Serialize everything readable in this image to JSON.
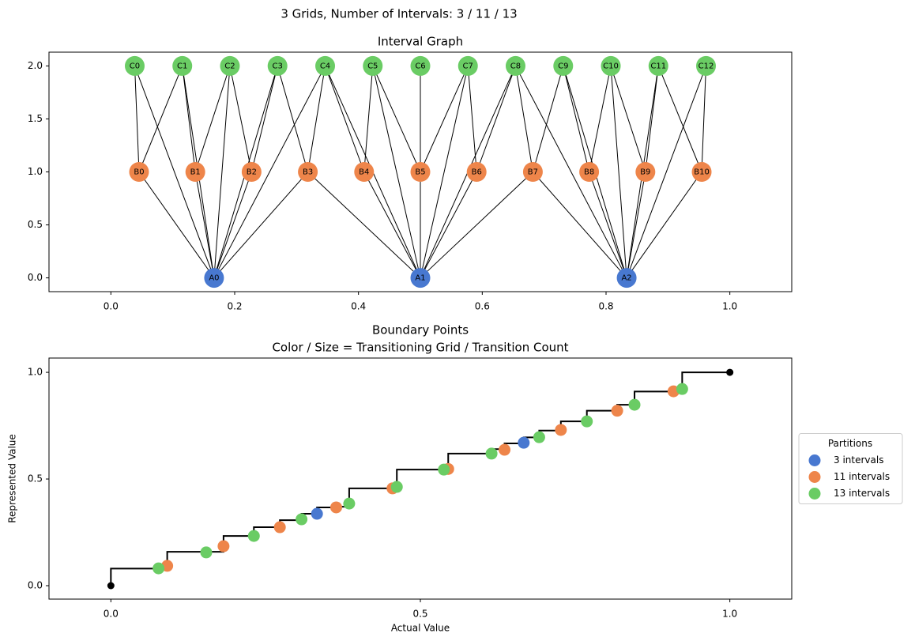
{
  "title": "3 Grids, Number of Intervals: 3 / 11 / 13",
  "chart_data": [
    {
      "type": "network",
      "title": "Interval Graph",
      "xlim": [
        -0.1,
        1.1
      ],
      "ylim": [
        -0.13,
        2.13
      ],
      "xticks": [
        {
          "value": 0,
          "label": "0.0"
        },
        {
          "value": 0.2,
          "label": "0.2"
        },
        {
          "value": 0.4,
          "label": "0.4"
        },
        {
          "value": 0.6,
          "label": "0.6"
        },
        {
          "value": 0.8,
          "label": "0.8"
        },
        {
          "value": 1,
          "label": "1.0"
        }
      ],
      "yticks": [
        {
          "value": 0,
          "label": "0.0"
        },
        0.5,
        {
          "value": 1,
          "label": "1.0"
        },
        1.5,
        {
          "value": 2,
          "label": "2.0"
        }
      ],
      "node_colors": [
        "#4878d0",
        "#ee854a",
        "#6acc64"
      ],
      "nodes": [
        [
          {
            "label": "A0",
            "x": 0.1667,
            "y": 0
          },
          {
            "label": "A1",
            "x": 0.5,
            "y": 0
          },
          {
            "label": "A2",
            "x": 0.8333,
            "y": 0
          }
        ],
        [
          {
            "label": "B0",
            "x": 0.0455,
            "y": 1
          },
          {
            "label": "B1",
            "x": 0.1364,
            "y": 1
          },
          {
            "label": "B2",
            "x": 0.2273,
            "y": 1
          },
          {
            "label": "B3",
            "x": 0.3182,
            "y": 1
          },
          {
            "label": "B4",
            "x": 0.4091,
            "y": 1
          },
          {
            "label": "B5",
            "x": 0.5,
            "y": 1
          },
          {
            "label": "B6",
            "x": 0.5909,
            "y": 1
          },
          {
            "label": "B7",
            "x": 0.6818,
            "y": 1
          },
          {
            "label": "B8",
            "x": 0.7727,
            "y": 1
          },
          {
            "label": "B9",
            "x": 0.8636,
            "y": 1
          },
          {
            "label": "B10",
            "x": 0.9545,
            "y": 1
          }
        ],
        [
          {
            "label": "C0",
            "x": 0.0385,
            "y": 2
          },
          {
            "label": "C1",
            "x": 0.1154,
            "y": 2
          },
          {
            "label": "C2",
            "x": 0.1923,
            "y": 2
          },
          {
            "label": "C3",
            "x": 0.2692,
            "y": 2
          },
          {
            "label": "C4",
            "x": 0.3462,
            "y": 2
          },
          {
            "label": "C5",
            "x": 0.4231,
            "y": 2
          },
          {
            "label": "C6",
            "x": 0.5,
            "y": 2
          },
          {
            "label": "C7",
            "x": 0.5769,
            "y": 2
          },
          {
            "label": "C8",
            "x": 0.6538,
            "y": 2
          },
          {
            "label": "C9",
            "x": 0.7308,
            "y": 2
          },
          {
            "label": "C10",
            "x": 0.8077,
            "y": 2
          },
          {
            "label": "C11",
            "x": 0.8846,
            "y": 2
          },
          {
            "label": "C12",
            "x": 0.9615,
            "y": 2
          }
        ]
      ],
      "edges": [
        [
          "A0",
          "B0"
        ],
        [
          "A0",
          "B1"
        ],
        [
          "A0",
          "B2"
        ],
        [
          "A0",
          "B3"
        ],
        [
          "A1",
          "B3"
        ],
        [
          "A1",
          "B4"
        ],
        [
          "A1",
          "B5"
        ],
        [
          "A1",
          "B6"
        ],
        [
          "A1",
          "B7"
        ],
        [
          "A2",
          "B7"
        ],
        [
          "A2",
          "B8"
        ],
        [
          "A2",
          "B9"
        ],
        [
          "A2",
          "B10"
        ],
        [
          "A0",
          "C0"
        ],
        [
          "A0",
          "C1"
        ],
        [
          "A0",
          "C2"
        ],
        [
          "A0",
          "C3"
        ],
        [
          "A0",
          "C4"
        ],
        [
          "A1",
          "C4"
        ],
        [
          "A1",
          "C5"
        ],
        [
          "A1",
          "C6"
        ],
        [
          "A1",
          "C7"
        ],
        [
          "A1",
          "C8"
        ],
        [
          "A2",
          "C8"
        ],
        [
          "A2",
          "C9"
        ],
        [
          "A2",
          "C10"
        ],
        [
          "A2",
          "C11"
        ],
        [
          "A2",
          "C12"
        ],
        [
          "B0",
          "C0"
        ],
        [
          "B0",
          "C1"
        ],
        [
          "B1",
          "C1"
        ],
        [
          "B1",
          "C2"
        ],
        [
          "B2",
          "C2"
        ],
        [
          "B2",
          "C3"
        ],
        [
          "B3",
          "C3"
        ],
        [
          "B3",
          "C4"
        ],
        [
          "B4",
          "C4"
        ],
        [
          "B4",
          "C5"
        ],
        [
          "B5",
          "C5"
        ],
        [
          "B5",
          "C6"
        ],
        [
          "B5",
          "C7"
        ],
        [
          "B6",
          "C7"
        ],
        [
          "B6",
          "C8"
        ],
        [
          "B7",
          "C8"
        ],
        [
          "B7",
          "C9"
        ],
        [
          "B8",
          "C9"
        ],
        [
          "B8",
          "C10"
        ],
        [
          "B9",
          "C10"
        ],
        [
          "B9",
          "C11"
        ],
        [
          "B10",
          "C11"
        ],
        [
          "B10",
          "C12"
        ]
      ]
    },
    {
      "type": "scatter",
      "title": [
        "Boundary Points",
        "Color / Size = Transitioning Grid / Transition Count"
      ],
      "xlabel": "Actual Value",
      "ylabel": "Represented Value",
      "xlim": [
        -0.1,
        1.1
      ],
      "ylim": [
        -0.063,
        1.067
      ],
      "xticks": [
        {
          "value": 0,
          "label": "0.0"
        },
        0.5,
        {
          "value": 1,
          "label": "1.0"
        }
      ],
      "yticks": [
        {
          "value": 0,
          "label": "0.0"
        },
        0.5,
        {
          "value": 1,
          "label": "1.0"
        }
      ],
      "legend": {
        "title": "Partitions",
        "loc": "outside right"
      },
      "step_line": {
        "color": "#000000",
        "x": [
          0,
          0.091,
          0.182,
          0.231,
          0.273,
          0.308,
          0.333,
          0.364,
          0.385,
          0.462,
          0.545,
          0.615,
          0.636,
          0.667,
          0.692,
          0.727,
          0.769,
          0.818,
          0.846,
          0.923,
          1
        ],
        "values": [
          0,
          0.08,
          0.159,
          0.233,
          0.274,
          0.307,
          0.337,
          0.367,
          0.37,
          0.456,
          0.544,
          0.619,
          0.64,
          0.667,
          0.695,
          0.727,
          0.77,
          0.82,
          0.848,
          0.91,
          1
        ]
      },
      "series": [
        {
          "name": "3 intervals",
          "color": "#4878d0",
          "x": [
            0.333,
            0.667
          ],
          "values": [
            0.337,
            0.67
          ]
        },
        {
          "name": "11 intervals",
          "color": "#ee854a",
          "x": [
            0.091,
            0.182,
            0.273,
            0.364,
            0.455,
            0.545,
            0.636,
            0.727,
            0.818,
            0.909
          ],
          "values": [
            0.093,
            0.185,
            0.274,
            0.367,
            0.456,
            0.547,
            0.637,
            0.73,
            0.82,
            0.911
          ]
        },
        {
          "name": "13 intervals",
          "color": "#6acc64",
          "x": [
            0.077,
            0.154,
            0.231,
            0.308,
            0.385,
            0.462,
            0.538,
            0.615,
            0.692,
            0.769,
            0.846,
            0.923
          ],
          "values": [
            0.081,
            0.156,
            0.233,
            0.311,
            0.385,
            0.463,
            0.544,
            0.619,
            0.696,
            0.77,
            0.848,
            0.922
          ]
        }
      ]
    }
  ]
}
